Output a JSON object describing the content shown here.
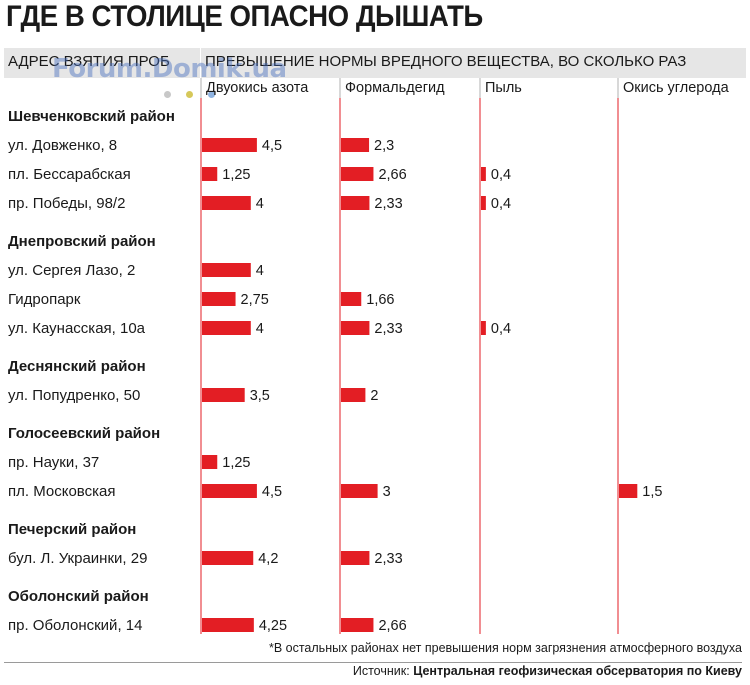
{
  "title": "ГДЕ В СТОЛИЦЕ ОПАСНО ДЫШАТЬ",
  "watermark": "Forum.Domik.ua",
  "header": {
    "address_col": "АДРЕС ВЗЯТИЯ ПРОБ",
    "excess_col": "ПРЕВЫШЕНИЕ НОРМЫ ВРЕДНОГО ВЕЩЕСТВА, ВО СКОЛЬКО РАЗ"
  },
  "colors": {
    "bar": "#e31e24",
    "divider": "#e31e24",
    "header_bg": "#e6e6e6"
  },
  "footnote": "*В остальных районах нет превышения норм загрязнения атмосферного воздуха",
  "source": {
    "label": "Источник:",
    "value": "Центральная геофизическая обсерватория по Киеву"
  },
  "chart_data": {
    "type": "bar",
    "orientation": "horizontal",
    "series_names": [
      "Двуокись азота",
      "Формальдегид",
      "Пыль",
      "Окись углерода"
    ],
    "districts": [
      {
        "name": "Шевченковский район",
        "rows": [
          {
            "label": "ул. Довженко, 8",
            "values": [
              4.5,
              2.3,
              null,
              null
            ],
            "labels": [
              "4,5",
              "2,3",
              "",
              ""
            ]
          },
          {
            "label": "пл. Бессарабская",
            "values": [
              1.25,
              2.66,
              0.4,
              null
            ],
            "labels": [
              "1,25",
              "2,66",
              "0,4",
              ""
            ]
          },
          {
            "label": "пр. Победы, 98/2",
            "values": [
              4,
              2.33,
              0.4,
              null
            ],
            "labels": [
              "4",
              "2,33",
              "0,4",
              ""
            ]
          }
        ]
      },
      {
        "name": "Днепровский район",
        "rows": [
          {
            "label": "ул. Сергея Лазо, 2",
            "values": [
              4,
              null,
              null,
              null
            ],
            "labels": [
              "4",
              "",
              "",
              ""
            ]
          },
          {
            "label": "Гидропарк",
            "values": [
              2.75,
              1.66,
              null,
              null
            ],
            "labels": [
              "2,75",
              "1,66",
              "",
              ""
            ]
          },
          {
            "label": "ул. Каунасская, 10а",
            "values": [
              4,
              2.33,
              0.4,
              null
            ],
            "labels": [
              "4",
              "2,33",
              "0,4",
              ""
            ]
          }
        ]
      },
      {
        "name": "Деснянский район",
        "rows": [
          {
            "label": "ул. Попудренко, 50",
            "values": [
              3.5,
              2,
              null,
              null
            ],
            "labels": [
              "3,5",
              "2",
              "",
              ""
            ]
          }
        ]
      },
      {
        "name": "Голосеевский район",
        "rows": [
          {
            "label": "пр. Науки, 37",
            "values": [
              1.25,
              null,
              null,
              null
            ],
            "labels": [
              "1,25",
              "",
              "",
              ""
            ]
          },
          {
            "label": "пл. Московская",
            "values": [
              4.5,
              3,
              null,
              1.5
            ],
            "labels": [
              "4,5",
              "3",
              "",
              "1,5"
            ]
          }
        ]
      },
      {
        "name": "Печерский район",
        "rows": [
          {
            "label": "бул. Л. Украинки, 29",
            "values": [
              4.2,
              2.33,
              null,
              null
            ],
            "labels": [
              "4,2",
              "2,33",
              "",
              ""
            ]
          }
        ]
      },
      {
        "name": "Оболонский район",
        "rows": [
          {
            "label": "пр. Оболонский, 14",
            "values": [
              4.25,
              2.66,
              null,
              null
            ],
            "labels": [
              "4,25",
              "2,66",
              "",
              ""
            ]
          }
        ]
      }
    ]
  }
}
